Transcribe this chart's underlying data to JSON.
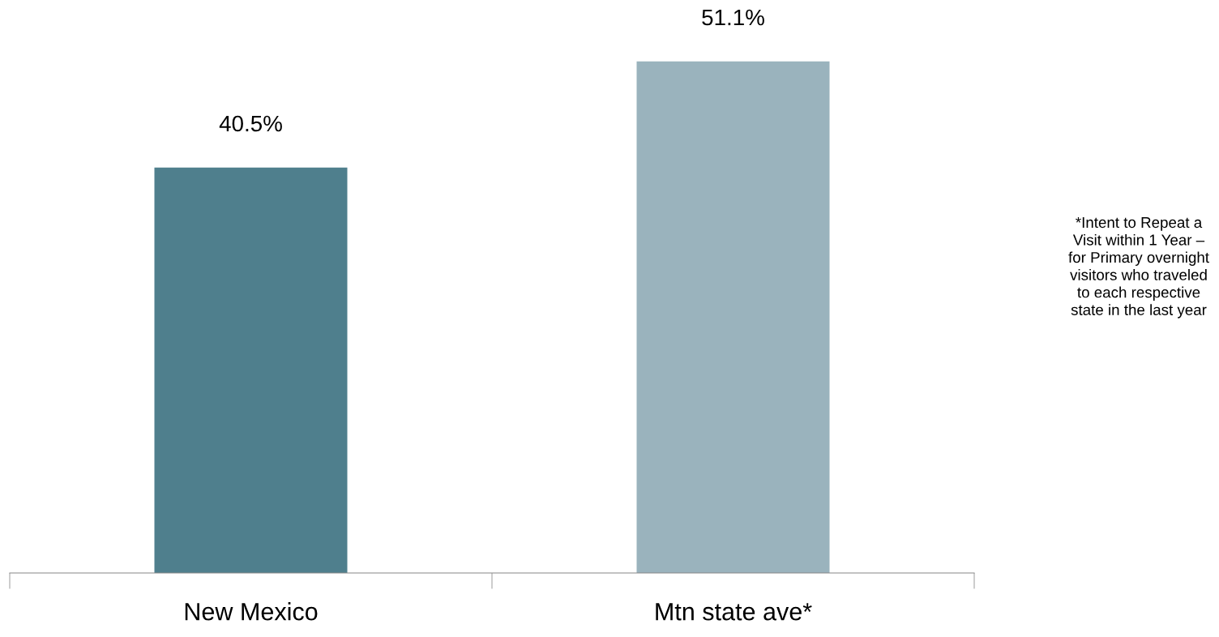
{
  "chart_data": {
    "type": "bar",
    "categories": [
      "New Mexico",
      "Mtn state ave*"
    ],
    "values": [
      40.5,
      51.1
    ],
    "colors": [
      "#4f7f8d",
      "#9ab3bd"
    ],
    "data_labels": true,
    "value_labels": [
      "40.5%",
      "51.1%"
    ],
    "annotations": [
      "*Intent to Repeat a\nVisit within 1 Year –\nfor Primary overnight\nvisitors who traveled\nto each respective\nstate in the last year"
    ],
    "grid": false,
    "legend": false
  }
}
